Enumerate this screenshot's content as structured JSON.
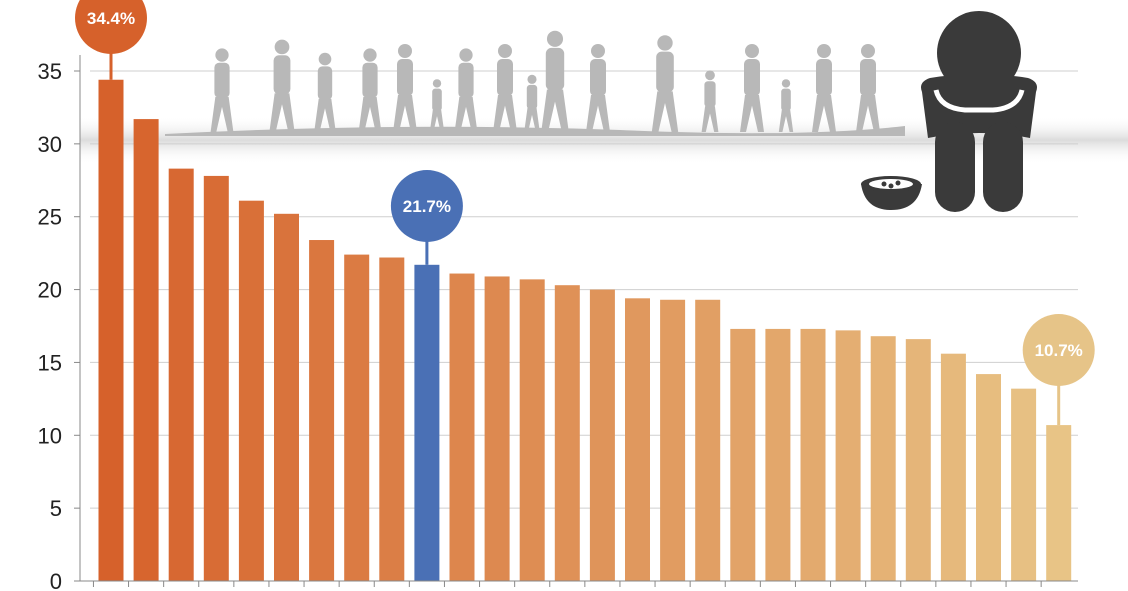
{
  "chart_data": {
    "type": "bar",
    "title": "",
    "xlabel": "",
    "ylabel": "",
    "ylim": [
      0,
      35
    ],
    "yticks": [
      "0",
      "5",
      "10",
      "15",
      "20",
      "25",
      "30",
      "35"
    ],
    "grid": true,
    "values": [
      34.4,
      31.7,
      28.3,
      27.8,
      26.1,
      25.2,
      23.4,
      22.4,
      22.2,
      21.7,
      21.1,
      20.9,
      20.7,
      20.3,
      20.0,
      19.4,
      19.3,
      19.3,
      17.3,
      17.3,
      17.3,
      17.2,
      16.8,
      16.6,
      15.6,
      14.2,
      13.2,
      10.7
    ],
    "highlight_index": 9,
    "colors": {
      "gradient_start": "#d6612b",
      "gradient_end": "#e8c486",
      "highlight": "#4a70b5",
      "callout_first": "#d6612b",
      "callout_highlight": "#4a70b5",
      "callout_last": "#e6c488",
      "silhouette": "#b8b8b8",
      "figure": "#3a3a3a"
    },
    "annotations": [
      {
        "bar_index": 0,
        "label": "34.4%"
      },
      {
        "bar_index": 9,
        "label": "21.7%"
      },
      {
        "bar_index": 27,
        "label": "10.7%"
      }
    ],
    "illustrations": [
      "refugee-silhouettes",
      "sad-person-icon",
      "empty-bowl-icon"
    ]
  }
}
